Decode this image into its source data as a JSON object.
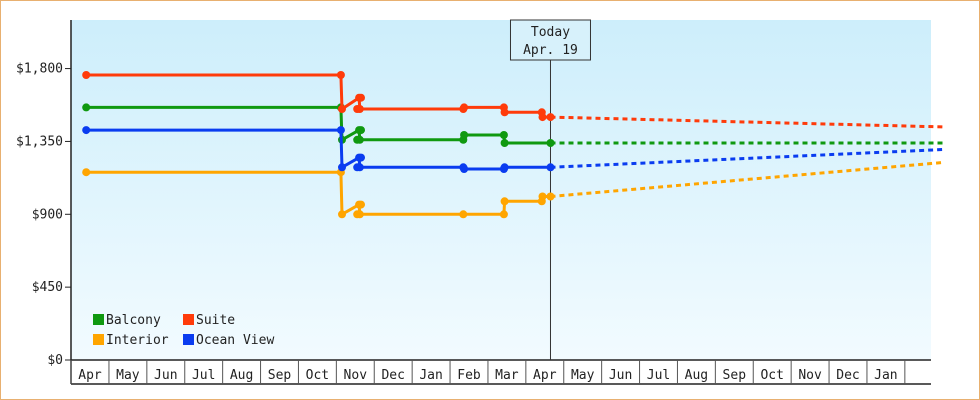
{
  "chart_data": {
    "type": "line",
    "title": "",
    "xlabel": "",
    "ylabel": "",
    "ylim": [
      0,
      2100
    ],
    "yticks": [
      {
        "value": 0,
        "label": "$0"
      },
      {
        "value": 450,
        "label": "$450"
      },
      {
        "value": 900,
        "label": "$900"
      },
      {
        "value": 1350,
        "label": "$1,350"
      },
      {
        "value": 1800,
        "label": "$1,800"
      }
    ],
    "x_months": [
      "Apr",
      "May",
      "Jun",
      "Jul",
      "Aug",
      "Sep",
      "Oct",
      "Nov",
      "Dec",
      "Jan",
      "Feb",
      "Mar",
      "Apr",
      "May",
      "Jun",
      "Jul",
      "Aug",
      "Sep",
      "Oct",
      "Nov",
      "Dec",
      "Jan"
    ],
    "today": {
      "line1": "Today",
      "line2": "Apr. 19",
      "x": 12.15
    },
    "grid": false,
    "legend_position": "bottom-left",
    "colors": {
      "Balcony": "#109910",
      "Suite": "#ff3b0a",
      "Interior": "#ffa500",
      "Ocean View": "#0a3cf0",
      "plot_top": "#cdeefb",
      "plot_bottom": "#f2fbff"
    },
    "series": [
      {
        "name": "Balcony",
        "steps": [
          [
            -0.1,
            1560
          ],
          [
            6.62,
            1560
          ],
          [
            6.65,
            1360
          ],
          [
            7.1,
            1420
          ],
          [
            7.12,
            1360
          ],
          [
            9.85,
            1360
          ],
          [
            9.87,
            1390
          ],
          [
            10.92,
            1390
          ],
          [
            10.94,
            1340
          ],
          [
            12.15,
            1340
          ]
        ],
        "markers": [
          [
            -0.1,
            1560
          ],
          [
            6.62,
            1560
          ],
          [
            6.65,
            1360
          ],
          [
            7.05,
            1360
          ],
          [
            7.1,
            1420
          ],
          [
            7.15,
            1420
          ],
          [
            7.12,
            1360
          ],
          [
            9.85,
            1360
          ],
          [
            9.87,
            1390
          ],
          [
            10.92,
            1390
          ],
          [
            10.94,
            1340
          ],
          [
            12.15,
            1340
          ]
        ],
        "forecast": [
          [
            12.15,
            1340
          ],
          [
            22.5,
            1340
          ]
        ]
      },
      {
        "name": "Suite",
        "steps": [
          [
            -0.1,
            1760
          ],
          [
            6.62,
            1760
          ],
          [
            6.65,
            1550
          ],
          [
            7.1,
            1620
          ],
          [
            7.12,
            1550
          ],
          [
            9.85,
            1550
          ],
          [
            9.87,
            1560
          ],
          [
            10.92,
            1560
          ],
          [
            10.94,
            1530
          ],
          [
            11.92,
            1530
          ],
          [
            11.94,
            1500
          ],
          [
            12.15,
            1500
          ]
        ],
        "markers": [
          [
            -0.1,
            1760
          ],
          [
            6.62,
            1760
          ],
          [
            6.65,
            1550
          ],
          [
            7.05,
            1550
          ],
          [
            7.1,
            1620
          ],
          [
            7.15,
            1620
          ],
          [
            7.12,
            1550
          ],
          [
            9.85,
            1550
          ],
          [
            9.87,
            1560
          ],
          [
            10.92,
            1560
          ],
          [
            10.94,
            1530
          ],
          [
            11.92,
            1530
          ],
          [
            11.94,
            1500
          ],
          [
            12.15,
            1500
          ]
        ],
        "forecast": [
          [
            12.15,
            1500
          ],
          [
            22.5,
            1440
          ]
        ]
      },
      {
        "name": "Interior",
        "steps": [
          [
            -0.1,
            1160
          ],
          [
            6.62,
            1160
          ],
          [
            6.65,
            900
          ],
          [
            7.1,
            960
          ],
          [
            7.12,
            900
          ],
          [
            9.85,
            900
          ],
          [
            10.92,
            900
          ],
          [
            10.94,
            980
          ],
          [
            11.92,
            980
          ],
          [
            11.94,
            1010
          ],
          [
            12.15,
            1010
          ]
        ],
        "markers": [
          [
            -0.1,
            1160
          ],
          [
            6.62,
            1160
          ],
          [
            6.65,
            900
          ],
          [
            7.05,
            900
          ],
          [
            7.1,
            960
          ],
          [
            7.15,
            960
          ],
          [
            7.12,
            900
          ],
          [
            9.85,
            900
          ],
          [
            10.92,
            900
          ],
          [
            10.94,
            980
          ],
          [
            11.92,
            980
          ],
          [
            11.94,
            1010
          ],
          [
            12.15,
            1010
          ]
        ],
        "forecast": [
          [
            12.15,
            1010
          ],
          [
            22.5,
            1220
          ]
        ]
      },
      {
        "name": "Ocean View",
        "steps": [
          [
            -0.1,
            1420
          ],
          [
            6.62,
            1420
          ],
          [
            6.65,
            1190
          ],
          [
            7.1,
            1250
          ],
          [
            7.12,
            1190
          ],
          [
            9.85,
            1190
          ],
          [
            9.87,
            1180
          ],
          [
            10.92,
            1180
          ],
          [
            10.94,
            1190
          ],
          [
            12.15,
            1190
          ]
        ],
        "markers": [
          [
            -0.1,
            1420
          ],
          [
            6.62,
            1420
          ],
          [
            6.65,
            1190
          ],
          [
            7.05,
            1190
          ],
          [
            7.1,
            1250
          ],
          [
            7.15,
            1250
          ],
          [
            7.12,
            1190
          ],
          [
            9.85,
            1190
          ],
          [
            9.87,
            1180
          ],
          [
            10.92,
            1180
          ],
          [
            10.94,
            1190
          ],
          [
            12.15,
            1190
          ]
        ],
        "forecast": [
          [
            12.15,
            1190
          ],
          [
            22.5,
            1300
          ]
        ]
      }
    ]
  }
}
